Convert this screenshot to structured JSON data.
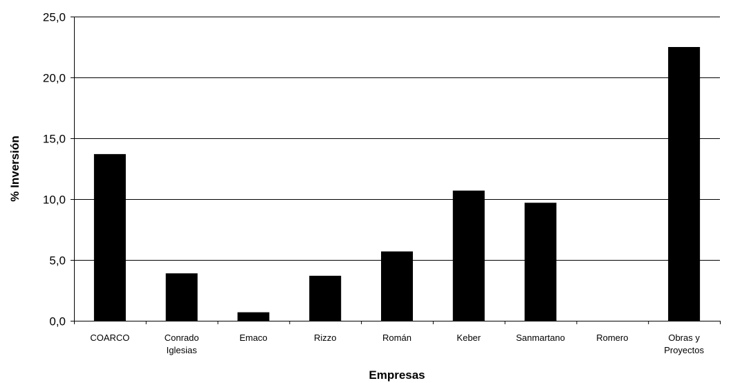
{
  "chart_data": {
    "type": "bar",
    "title": "",
    "xlabel": "Empresas",
    "ylabel": "% Inversión",
    "categories": [
      [
        "COARCO"
      ],
      [
        "Conrado",
        "Iglesias"
      ],
      [
        "Emaco"
      ],
      [
        "Rizzo"
      ],
      [
        "Román"
      ],
      [
        "Keber"
      ],
      [
        "Sanmartano"
      ],
      [
        "Romero"
      ],
      [
        "Obras y",
        "Proyectos"
      ]
    ],
    "values": [
      13.7,
      3.9,
      0.7,
      3.7,
      5.7,
      10.7,
      9.7,
      0.0,
      22.5
    ],
    "ylim": [
      0,
      25
    ],
    "yticks": [
      0,
      5,
      10,
      15,
      20,
      25
    ],
    "ytick_labels": [
      "0,0",
      "5,0",
      "10,0",
      "15,0",
      "20,0",
      "25,0"
    ],
    "grid": true,
    "legend": "none",
    "colors": {
      "bar": "#000000",
      "grid": "#000000",
      "background": "#ffffff"
    }
  }
}
